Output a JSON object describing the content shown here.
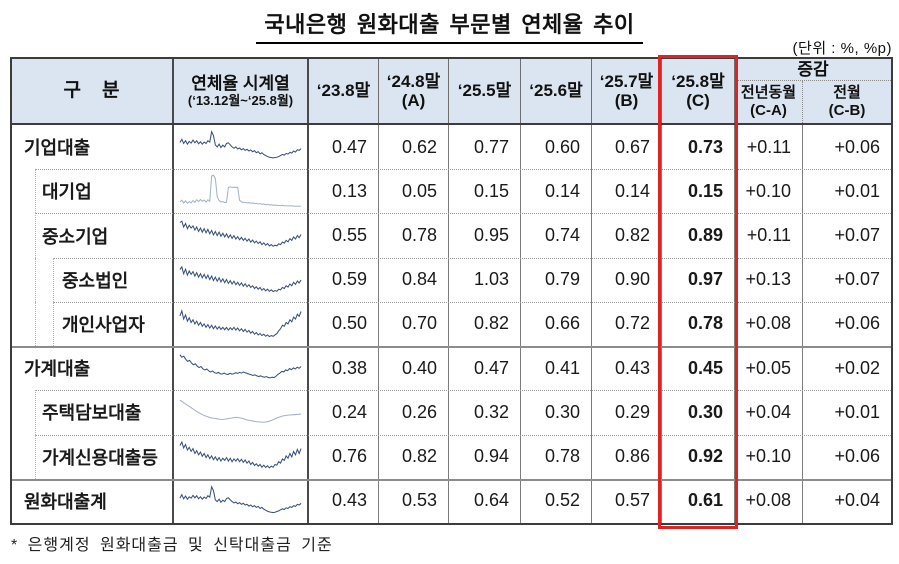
{
  "title": "국내은행 원화대출 부문별 연체율 추이",
  "unit_note": "(단위 : %, %p)",
  "footnote": "* 은행계정 원화대출금 및 신탁대출금 기준",
  "colors": {
    "header_bg": "#dbe5f1",
    "highlight_red": "#e02322",
    "spark_dark": "#3a507c",
    "spark_light": "#a4b3c9"
  },
  "table": {
    "header": {
      "category": "구　분",
      "timeseries_line1": "연체율 시계열",
      "timeseries_line2": "(‘13.12월~‘25.8월)",
      "periods": [
        {
          "line1": "‘23.8말",
          "line2": ""
        },
        {
          "line1": "‘24.8말",
          "line2": "(A)"
        },
        {
          "line1": "‘25.5말",
          "line2": ""
        },
        {
          "line1": "‘25.6말",
          "line2": ""
        },
        {
          "line1": "‘25.7말",
          "line2": "(B)"
        },
        {
          "line1": "‘25.8말",
          "line2": "(C)",
          "highlighted": true
        }
      ],
      "change_group": "증감",
      "change_cols": [
        {
          "line1": "전년동월",
          "line2": "(C-A)"
        },
        {
          "line1": "전월",
          "line2": "(C-B)"
        }
      ]
    },
    "rows": [
      {
        "label": "기업대출",
        "level": 0,
        "section_start": false,
        "values": [
          "0.47",
          "0.62",
          "0.77",
          "0.60",
          "0.67",
          "0.73",
          "+0.11",
          "+0.06"
        ],
        "spark_tone": "dark",
        "spark": [
          65,
          74,
          62,
          70,
          60,
          68,
          63,
          72,
          64,
          70,
          61,
          67,
          60,
          66,
          62,
          70,
          66,
          96,
          85,
          58,
          52,
          60,
          50,
          57,
          52,
          62,
          64,
          58,
          52,
          48,
          52,
          46,
          49,
          44,
          47,
          42,
          45,
          40,
          43,
          38,
          41,
          35,
          38,
          32,
          35,
          30,
          27,
          24,
          22,
          21,
          20,
          21,
          22,
          24,
          27,
          30,
          28,
          33,
          31,
          36,
          34,
          40,
          37,
          44,
          42,
          47
        ]
      },
      {
        "label": "대기업",
        "level": 1,
        "section_start": false,
        "values": [
          "0.13",
          "0.05",
          "0.15",
          "0.14",
          "0.14",
          "0.15",
          "+0.10",
          "+0.01"
        ],
        "spark_tone": "light",
        "spark": [
          20,
          25,
          17,
          23,
          16,
          21,
          17,
          24,
          19,
          26,
          21,
          27,
          22,
          25,
          20,
          26,
          22,
          95,
          98,
          88,
          35,
          24,
          20,
          21,
          18,
          19,
          62,
          64,
          62,
          63,
          62,
          63,
          25,
          20,
          18,
          19,
          17,
          18,
          16,
          17,
          15,
          16,
          14,
          15,
          13,
          14,
          12,
          13,
          11,
          12,
          10,
          11,
          10,
          10,
          9,
          10,
          9,
          9,
          8,
          9,
          8,
          8,
          7,
          8,
          7,
          8
        ]
      },
      {
        "label": "중소기업",
        "level": 1,
        "section_start": false,
        "values": [
          "0.55",
          "0.78",
          "0.95",
          "0.74",
          "0.82",
          "0.89",
          "+0.11",
          "+0.07"
        ],
        "spark_tone": "dark",
        "spark": [
          88,
          92,
          75,
          85,
          70,
          80,
          72,
          78,
          66,
          75,
          62,
          72,
          60,
          70,
          58,
          68,
          55,
          65,
          52,
          62,
          50,
          60,
          48,
          57,
          46,
          55,
          44,
          52,
          42,
          50,
          40,
          47,
          38,
          45,
          36,
          42,
          34,
          40,
          31,
          37,
          29,
          34,
          27,
          32,
          24,
          29,
          22,
          27,
          20,
          24,
          19,
          22,
          20,
          26,
          24,
          31,
          28,
          36,
          32,
          41,
          36,
          46,
          40,
          50,
          44,
          53
        ]
      },
      {
        "label": "중소법인",
        "level": 2,
        "section_start": false,
        "values": [
          "0.59",
          "0.84",
          "1.03",
          "0.79",
          "0.90",
          "0.97",
          "+0.13",
          "+0.07"
        ],
        "spark_tone": "dark",
        "spark": [
          82,
          90,
          70,
          83,
          66,
          78,
          68,
          76,
          63,
          73,
          60,
          70,
          58,
          68,
          56,
          66,
          53,
          63,
          50,
          60,
          48,
          58,
          46,
          55,
          44,
          53,
          42,
          50,
          40,
          48,
          38,
          45,
          36,
          43,
          34,
          41,
          32,
          38,
          30,
          35,
          27,
          32,
          25,
          30,
          22,
          27,
          20,
          25,
          19,
          23,
          18,
          21,
          19,
          25,
          23,
          30,
          27,
          35,
          31,
          40,
          35,
          45,
          39,
          49,
          43,
          52
        ]
      },
      {
        "label": "개인사업자",
        "level": 2,
        "section_start": false,
        "values": [
          "0.50",
          "0.70",
          "0.82",
          "0.66",
          "0.72",
          "0.78",
          "+0.08",
          "+0.06"
        ],
        "spark_tone": "dark",
        "spark": [
          75,
          90,
          66,
          78,
          60,
          70,
          56,
          64,
          52,
          60,
          48,
          56,
          45,
          52,
          42,
          50,
          40,
          48,
          38,
          46,
          37,
          44,
          36,
          42,
          35,
          42,
          34,
          41,
          35,
          42,
          34,
          40,
          32,
          38,
          30,
          36,
          28,
          33,
          25,
          30,
          22,
          27,
          20,
          24,
          18,
          22,
          16,
          20,
          15,
          18,
          16,
          20,
          24,
          32,
          38,
          48,
          45,
          56,
          52,
          64,
          58,
          72,
          66,
          80,
          74,
          88
        ]
      },
      {
        "label": "가계대출",
        "level": 0,
        "section_start": true,
        "values": [
          "0.38",
          "0.40",
          "0.47",
          "0.41",
          "0.43",
          "0.45",
          "+0.05",
          "+0.02"
        ],
        "spark_tone": "dark",
        "spark": [
          90,
          83,
          86,
          77,
          71,
          74,
          66,
          61,
          64,
          57,
          53,
          56,
          49,
          46,
          49,
          43,
          40,
          43,
          38,
          36,
          39,
          35,
          34,
          37,
          34,
          33,
          36,
          34,
          35,
          38,
          36,
          39,
          37,
          40,
          38,
          36,
          34,
          32,
          30,
          32,
          29,
          27,
          29,
          26,
          25,
          27,
          24,
          23,
          25,
          24,
          28,
          33,
          37,
          42,
          40,
          46,
          44,
          50,
          47,
          52,
          49,
          54,
          51,
          56
        ]
      },
      {
        "label": "주택담보대출",
        "level": 1,
        "section_start": false,
        "values": [
          "0.24",
          "0.26",
          "0.32",
          "0.30",
          "0.29",
          "0.30",
          "+0.04",
          "+0.01"
        ],
        "spark_tone": "light",
        "spark": [
          86,
          82,
          78,
          74,
          70,
          66,
          62,
          58,
          54,
          50,
          47,
          44,
          41,
          39,
          37,
          35,
          34,
          33,
          32,
          31,
          30,
          30,
          31,
          32,
          33,
          34,
          35,
          36,
          36,
          35,
          34,
          32,
          30,
          28,
          27,
          26,
          25,
          24,
          23,
          23,
          22,
          22,
          23,
          24,
          26,
          28,
          31,
          34,
          36,
          38,
          40,
          41,
          42,
          43,
          43,
          44,
          44,
          45,
          45,
          46
        ]
      },
      {
        "label": "가계신용대출등",
        "level": 1,
        "section_start": false,
        "values": [
          "0.76",
          "0.82",
          "0.94",
          "0.78",
          "0.86",
          "0.92",
          "+0.10",
          "+0.06"
        ],
        "spark_tone": "dark",
        "spark": [
          85,
          95,
          78,
          88,
          72,
          80,
          68,
          76,
          62,
          70,
          58,
          66,
          54,
          62,
          50,
          58,
          47,
          55,
          44,
          52,
          42,
          50,
          40,
          48,
          42,
          50,
          40,
          48,
          38,
          46,
          40,
          47,
          38,
          45,
          36,
          43,
          34,
          40,
          30,
          36,
          27,
          32,
          25,
          30,
          22,
          28,
          21,
          26,
          20,
          25,
          22,
          30,
          28,
          38,
          34,
          46,
          42,
          55,
          48,
          62,
          52,
          68,
          58,
          74,
          62,
          76
        ]
      },
      {
        "label": "원화대출계",
        "level": 0,
        "section_start": true,
        "values": [
          "0.43",
          "0.53",
          "0.64",
          "0.52",
          "0.57",
          "0.61",
          "+0.08",
          "+0.04"
        ],
        "spark_tone": "dark",
        "spark": [
          60,
          70,
          58,
          66,
          57,
          64,
          60,
          68,
          61,
          67,
          58,
          64,
          57,
          63,
          59,
          67,
          63,
          93,
          82,
          55,
          50,
          57,
          48,
          54,
          50,
          59,
          61,
          55,
          50,
          46,
          49,
          44,
          47,
          42,
          45,
          40,
          42,
          37,
          40,
          35,
          38,
          33,
          36,
          30,
          33,
          28,
          25,
          22,
          20,
          19,
          18,
          19,
          21,
          23,
          26,
          29,
          27,
          32,
          30,
          35,
          33,
          38,
          36,
          42,
          40,
          45
        ]
      }
    ]
  }
}
